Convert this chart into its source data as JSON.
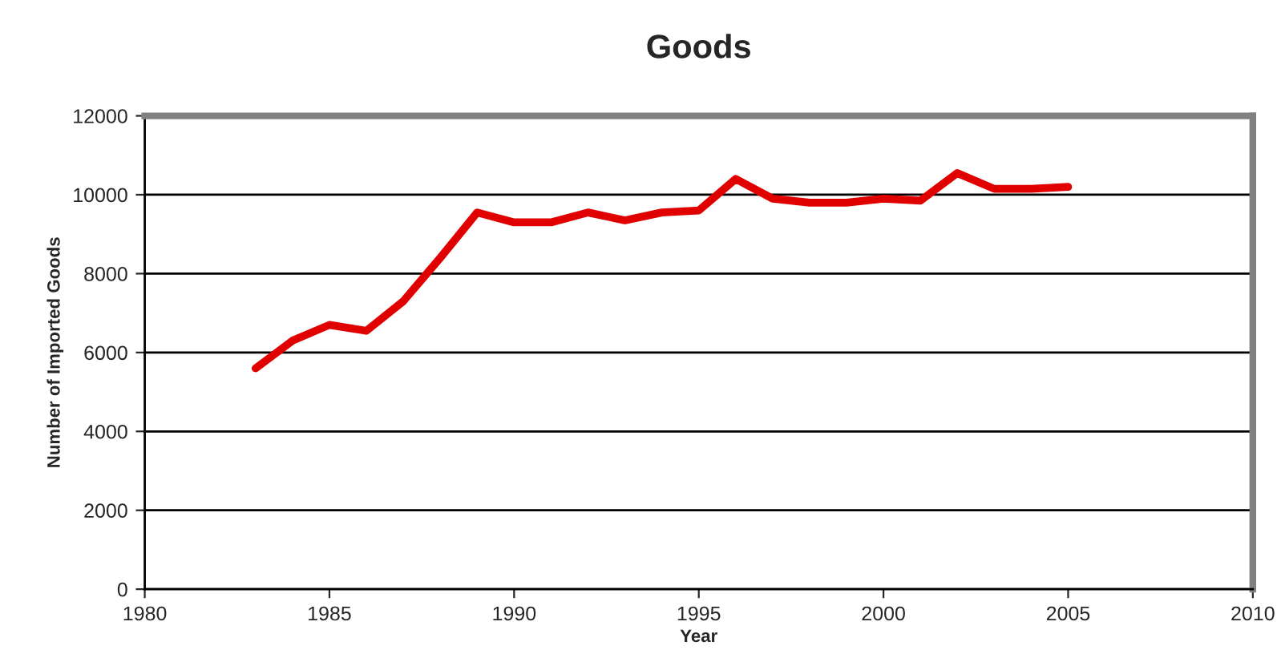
{
  "chart_data": {
    "type": "line",
    "title": "Goods",
    "xlabel": "Year",
    "ylabel": "Number of Imported Goods",
    "x": [
      1983,
      1984,
      1985,
      1986,
      1987,
      1988,
      1989,
      1990,
      1991,
      1992,
      1993,
      1994,
      1995,
      1996,
      1997,
      1998,
      1999,
      2000,
      2001,
      2002,
      2003,
      2004,
      2005
    ],
    "series": [
      {
        "color": "#e00000",
        "values": [
          5600,
          6300,
          6700,
          6550,
          7300,
          8400,
          9550,
          9300,
          9300,
          9550,
          9350,
          9550,
          9600,
          10400,
          9900,
          9800,
          9800,
          9900,
          9850,
          10550,
          10150,
          10150,
          10200
        ]
      }
    ],
    "xlim": [
      1980,
      2010
    ],
    "xticks": [
      1980,
      1985,
      1990,
      1995,
      2000,
      2005,
      2010
    ],
    "ylim": [
      0,
      12000
    ],
    "yticks": [
      0,
      2000,
      4000,
      6000,
      8000,
      10000,
      12000
    ],
    "grid": "y",
    "marker": "none",
    "line_style": "solid"
  }
}
